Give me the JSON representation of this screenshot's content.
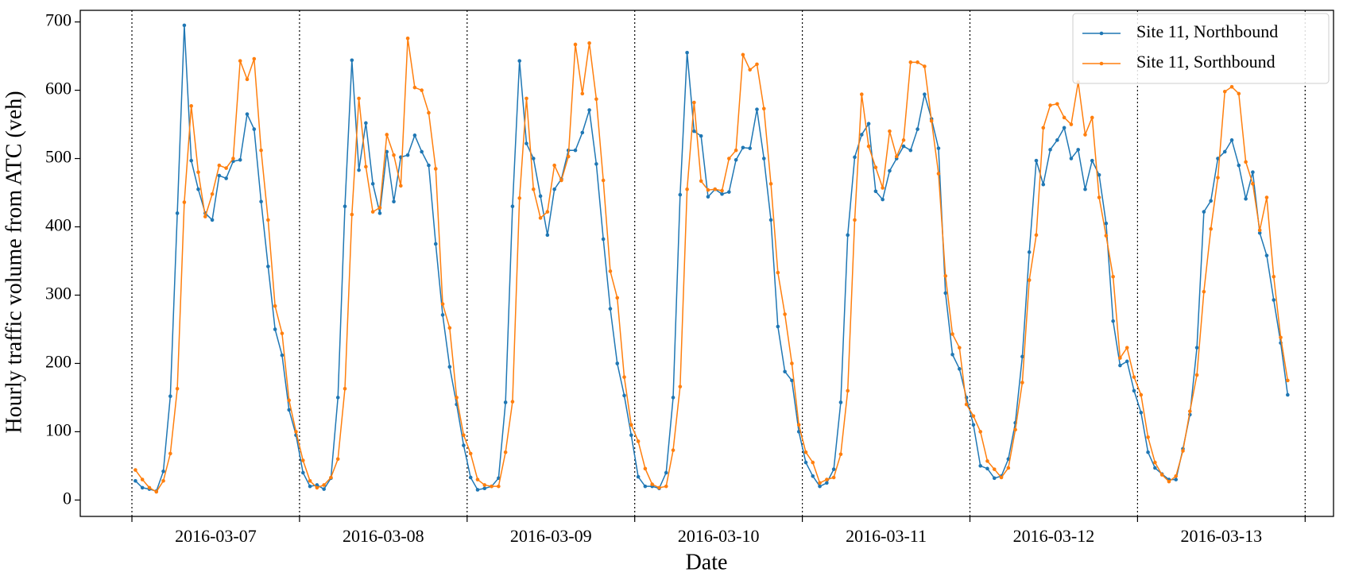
{
  "chart_data": {
    "type": "line",
    "x_label": "Date",
    "y_label": "Hourly traffic volume from ATC (veh)",
    "categories": [
      null,
      null,
      null,
      null,
      null,
      null,
      null,
      null,
      null,
      null,
      null,
      null,
      "2016-03-07",
      null,
      null,
      null,
      null,
      null,
      null,
      null,
      null,
      null,
      null,
      null,
      null,
      null,
      null,
      null,
      null,
      null,
      null,
      null,
      null,
      null,
      null,
      null,
      "2016-03-08",
      null,
      null,
      null,
      null,
      null,
      null,
      null,
      null,
      null,
      null,
      null,
      null,
      null,
      null,
      null,
      null,
      null,
      null,
      null,
      null,
      null,
      null,
      null,
      "2016-03-09",
      null,
      null,
      null,
      null,
      null,
      null,
      null,
      null,
      null,
      null,
      null,
      null,
      null,
      null,
      null,
      null,
      null,
      null,
      null,
      null,
      null,
      null,
      null,
      "2016-03-10",
      null,
      null,
      null,
      null,
      null,
      null,
      null,
      null,
      null,
      null,
      null,
      null,
      null,
      null,
      null,
      null,
      null,
      null,
      null,
      null,
      null,
      null,
      null,
      "2016-03-11",
      null,
      null,
      null,
      null,
      null,
      null,
      null,
      null,
      null,
      null,
      null,
      null,
      null,
      null,
      null,
      null,
      null,
      null,
      null,
      null,
      null,
      null,
      null,
      "2016-03-12",
      null,
      null,
      null,
      null,
      null,
      null,
      null,
      null,
      null,
      null,
      null,
      null,
      null,
      null,
      null,
      null,
      null,
      null,
      null,
      null,
      null,
      null,
      null,
      "2016-03-13",
      null,
      null,
      null,
      null,
      null,
      null,
      null,
      null,
      null,
      null,
      null
    ],
    "series": [
      {
        "name": "Site 11, Northbound",
        "color": "#1f77b4",
        "values": [
          28,
          18,
          16,
          13,
          42,
          152,
          420,
          695,
          497,
          455,
          420,
          410,
          475,
          471,
          496,
          498,
          565,
          543,
          437,
          342,
          250,
          212,
          132,
          95,
          40,
          20,
          22,
          16,
          32,
          150,
          430,
          644,
          483,
          552,
          463,
          420,
          510,
          437,
          502,
          505,
          534,
          510,
          490,
          375,
          271,
          195,
          140,
          80,
          33,
          15,
          17,
          20,
          32,
          143,
          430,
          643,
          522,
          500,
          445,
          388,
          455,
          470,
          512,
          512,
          538,
          571,
          492,
          382,
          280,
          200,
          153,
          95,
          34,
          20,
          20,
          17,
          40,
          150,
          447,
          655,
          540,
          533,
          444,
          455,
          448,
          451,
          498,
          516,
          515,
          572,
          500,
          410,
          254,
          188,
          175,
          100,
          55,
          35,
          20,
          25,
          45,
          143,
          388,
          502,
          535,
          551,
          452,
          440,
          482,
          500,
          518,
          512,
          543,
          594,
          558,
          515,
          303,
          213,
          192,
          150,
          110,
          50,
          46,
          32,
          35,
          60,
          113,
          210,
          363,
          497,
          462,
          513,
          527,
          545,
          500,
          513,
          455,
          497,
          476,
          405,
          262,
          197,
          203,
          160,
          128,
          70,
          47,
          38,
          30,
          30,
          75,
          125,
          223,
          422,
          438,
          500,
          510,
          527,
          490,
          441,
          480,
          391,
          358,
          293,
          230,
          154,
          null,
          null
        ]
      },
      {
        "name": "Site 11, Sorthbound",
        "color": "#ff7f0e",
        "values": [
          44,
          30,
          18,
          12,
          28,
          68,
          163,
          436,
          577,
          480,
          415,
          448,
          490,
          486,
          500,
          643,
          616,
          646,
          512,
          410,
          284,
          244,
          146,
          100,
          58,
          28,
          18,
          22,
          33,
          60,
          163,
          418,
          588,
          488,
          422,
          428,
          535,
          505,
          460,
          676,
          604,
          600,
          567,
          485,
          287,
          252,
          150,
          95,
          68,
          30,
          22,
          20,
          20,
          70,
          144,
          442,
          588,
          455,
          413,
          422,
          490,
          468,
          503,
          667,
          595,
          669,
          587,
          468,
          335,
          296,
          180,
          110,
          86,
          46,
          23,
          18,
          20,
          73,
          166,
          455,
          582,
          467,
          454,
          455,
          453,
          500,
          512,
          652,
          630,
          638,
          573,
          463,
          333,
          272,
          200,
          110,
          70,
          55,
          25,
          30,
          33,
          67,
          160,
          410,
          594,
          518,
          487,
          457,
          540,
          503,
          527,
          641,
          641,
          635,
          555,
          478,
          328,
          243,
          223,
          140,
          123,
          100,
          57,
          45,
          33,
          47,
          103,
          172,
          322,
          388,
          545,
          578,
          580,
          560,
          550,
          612,
          535,
          560,
          443,
          387,
          327,
          208,
          223,
          180,
          154,
          92,
          55,
          37,
          27,
          35,
          72,
          130,
          183,
          305,
          397,
          472,
          598,
          605,
          595,
          495,
          463,
          395,
          443,
          327,
          238,
          175,
          null,
          null
        ]
      }
    ],
    "ylim": [
      -24,
      717
    ],
    "yticks": [
      0,
      100,
      200,
      300,
      400,
      500,
      600,
      700
    ],
    "legend": "upper right"
  }
}
